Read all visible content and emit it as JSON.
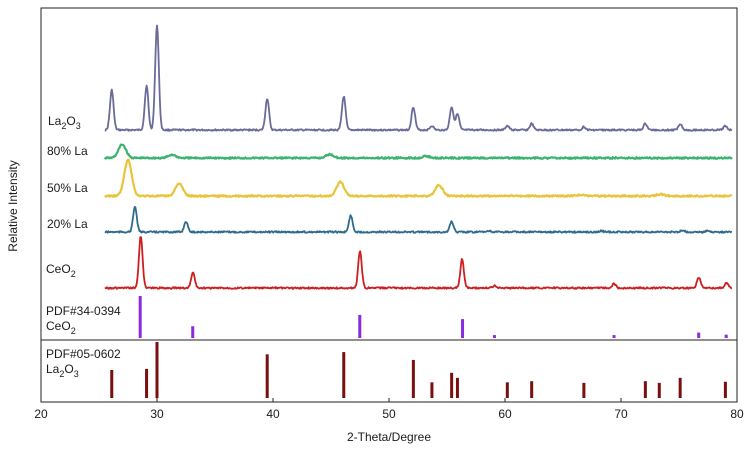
{
  "chart_data": {
    "type": "line",
    "xlabel": "2-Theta/Degree",
    "ylabel": "Relative Intensity",
    "xlim": [
      20,
      80
    ],
    "xticks": [
      "20",
      "30",
      "40",
      "50",
      "60",
      "70",
      "80"
    ],
    "series": [
      {
        "name": "La2O3",
        "label_main": "La",
        "label_sub1": "2",
        "label_mid": "O",
        "label_sub2": "3",
        "color": "#6b6b99",
        "peaks": [
          [
            26.1,
            0.38
          ],
          [
            29.1,
            0.42
          ],
          [
            30.0,
            1.0
          ],
          [
            39.5,
            0.3
          ],
          [
            46.1,
            0.32
          ],
          [
            52.1,
            0.22
          ],
          [
            53.7,
            0.04
          ],
          [
            55.4,
            0.22
          ],
          [
            55.9,
            0.15
          ],
          [
            60.2,
            0.04
          ],
          [
            62.3,
            0.06
          ],
          [
            66.8,
            0.03
          ],
          [
            72.1,
            0.06
          ],
          [
            75.1,
            0.06
          ],
          [
            79.0,
            0.04
          ]
        ]
      },
      {
        "name": "80% La",
        "label": "80% La",
        "color": "#3cb371",
        "peaks": [
          [
            27.0,
            0.75
          ],
          [
            31.3,
            0.18
          ],
          [
            44.9,
            0.2
          ],
          [
            53.2,
            0.1
          ]
        ]
      },
      {
        "name": "50% La",
        "label": "50% La",
        "color": "#e8c43a",
        "peaks": [
          [
            27.5,
            1.0
          ],
          [
            31.9,
            0.35
          ],
          [
            45.8,
            0.4
          ],
          [
            54.3,
            0.3
          ],
          [
            66.5,
            0.03
          ],
          [
            73.4,
            0.05
          ]
        ]
      },
      {
        "name": "20% La",
        "label": "20% La",
        "color": "#2e6b8e",
        "peaks": [
          [
            28.1,
            0.85
          ],
          [
            32.5,
            0.35
          ],
          [
            46.7,
            0.55
          ],
          [
            55.4,
            0.35
          ],
          [
            58.6,
            0.04
          ],
          [
            68.3,
            0.04
          ],
          [
            75.3,
            0.06
          ],
          [
            77.5,
            0.05
          ]
        ]
      },
      {
        "name": "CeO2",
        "label_main": "CeO",
        "label_sub": "2",
        "color": "#cc1f1f",
        "peaks": [
          [
            28.6,
            1.0
          ],
          [
            33.1,
            0.3
          ],
          [
            47.5,
            0.7
          ],
          [
            56.3,
            0.55
          ],
          [
            59.1,
            0.05
          ],
          [
            69.4,
            0.08
          ],
          [
            76.7,
            0.2
          ],
          [
            79.1,
            0.1
          ]
        ]
      }
    ],
    "references": [
      {
        "code": "PDF#34-0394",
        "phase_main": "CeO",
        "phase_sub": "2",
        "color": "#8a2be2",
        "sticks": [
          [
            28.55,
            1.0
          ],
          [
            33.08,
            0.28
          ],
          [
            47.48,
            0.55
          ],
          [
            56.34,
            0.45
          ],
          [
            59.09,
            0.07
          ],
          [
            69.4,
            0.07
          ],
          [
            76.7,
            0.13
          ],
          [
            79.07,
            0.08
          ]
        ]
      },
      {
        "code": "PDF#05-0602",
        "phase_main": "La",
        "phase_sub1": "2",
        "phase_mid": "O",
        "phase_sub2": "3",
        "color": "#7a0f0f",
        "sticks": [
          [
            26.1,
            0.5
          ],
          [
            29.1,
            0.52
          ],
          [
            30.0,
            1.0
          ],
          [
            39.5,
            0.78
          ],
          [
            46.1,
            0.82
          ],
          [
            52.1,
            0.68
          ],
          [
            53.7,
            0.28
          ],
          [
            55.4,
            0.45
          ],
          [
            55.9,
            0.36
          ],
          [
            60.2,
            0.28
          ],
          [
            62.3,
            0.3
          ],
          [
            66.8,
            0.27
          ],
          [
            72.1,
            0.3
          ],
          [
            73.3,
            0.27
          ],
          [
            75.1,
            0.36
          ],
          [
            79.0,
            0.29
          ]
        ]
      }
    ]
  }
}
